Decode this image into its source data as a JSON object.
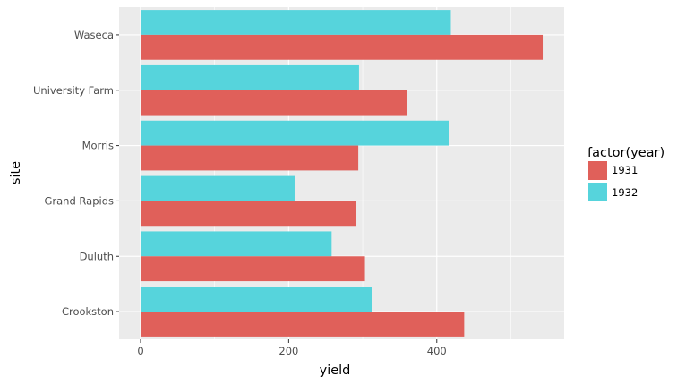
{
  "chart_data": {
    "type": "bar",
    "orientation": "horizontal",
    "categories": [
      "Waseca",
      "University Farm",
      "Morris",
      "Grand Rapids",
      "Duluth",
      "Crookston"
    ],
    "series": [
      {
        "name": "1931",
        "color": "#e0605a",
        "values": [
          543,
          360,
          294,
          291,
          303,
          437
        ]
      },
      {
        "name": "1932",
        "color": "#56d4dc",
        "values": [
          419,
          295,
          416,
          208,
          258,
          312
        ]
      }
    ],
    "xlabel": "yield",
    "ylabel": "site",
    "xlim": [
      -29,
      572
    ],
    "xticks": [
      0,
      200,
      400
    ],
    "grid": true,
    "legend_title": "factor(year)",
    "legend_position": "right",
    "panel_color": "#ebebeb"
  }
}
